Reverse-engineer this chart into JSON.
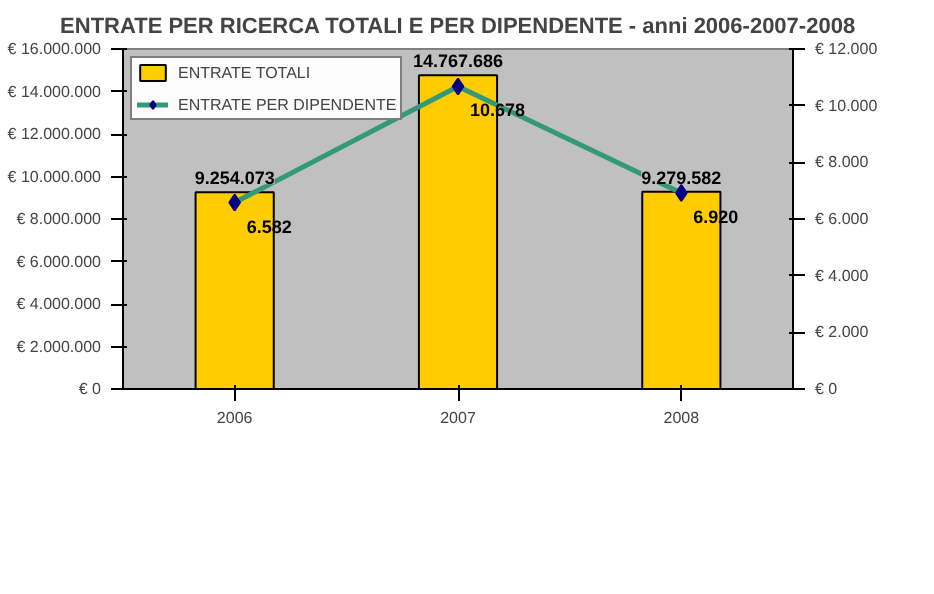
{
  "chart_data": {
    "type": "bar",
    "title": "ENTRATE PER RICERCA TOTALI E PER DIPENDENTE - anni 2006-2007-2008",
    "categories": [
      "2006",
      "2007",
      "2008"
    ],
    "series": [
      {
        "name": "ENTRATE TOTALI",
        "color": "#ffcc00",
        "values": [
          9254073,
          14767686,
          9279582
        ],
        "value_labels": [
          "9.254.073",
          "14.767.686",
          "9.279.582"
        ]
      },
      {
        "name": "ENTRATE PER DIPENDENTE",
        "type": "line",
        "axis": "y2",
        "color": "#339977",
        "values": [
          6582,
          10678,
          6920
        ],
        "value_labels": [
          "6.582",
          "10.678",
          "6.920"
        ]
      }
    ],
    "ylim": [
      0,
      16000000
    ],
    "yticks": [
      {
        "value": 0,
        "label": "€ 0"
      },
      {
        "value": 2000000,
        "label": "€ 2.000.000"
      },
      {
        "value": 4000000,
        "label": "€ 4.000.000"
      },
      {
        "value": 6000000,
        "label": "€ 6.000.000"
      },
      {
        "value": 8000000,
        "label": "€ 8.000.000"
      },
      {
        "value": 10000000,
        "label": "€ 10.000.000"
      },
      {
        "value": 12000000,
        "label": "€ 12.000.000"
      },
      {
        "value": 14000000,
        "label": "€ 14.000.000"
      },
      {
        "value": 16000000,
        "label": "€ 16.000.000"
      }
    ],
    "y2lim": [
      0,
      12000
    ],
    "y2ticks": [
      {
        "value": 0,
        "label": "€ 0"
      },
      {
        "value": 2000,
        "label": "€ 2.000"
      },
      {
        "value": 4000,
        "label": "€ 4.000"
      },
      {
        "value": 6000,
        "label": "€ 6.000"
      },
      {
        "value": 8000,
        "label": "€ 8.000"
      },
      {
        "value": 10000,
        "label": "€ 10.000"
      },
      {
        "value": 12000,
        "label": "€ 12.000"
      }
    ],
    "marker": "diamond",
    "grid": false,
    "legend": "top left"
  }
}
